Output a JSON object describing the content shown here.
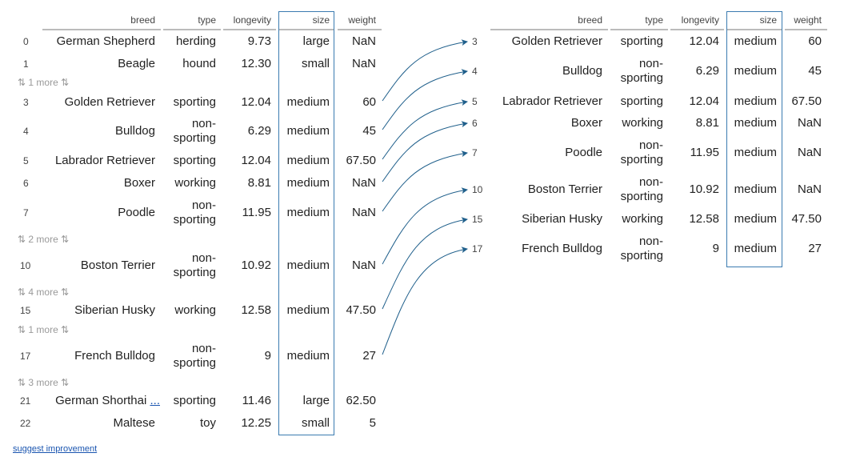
{
  "columns": [
    "breed",
    "type",
    "longevity",
    "size",
    "weight"
  ],
  "left_table": {
    "rows": [
      {
        "kind": "row",
        "index": "0",
        "breed": "German Shepherd",
        "type": "herding",
        "longevity": "9.73",
        "size": "large",
        "weight": "NaN"
      },
      {
        "kind": "row",
        "index": "1",
        "breed": "Beagle",
        "type": "hound",
        "longevity": "12.30",
        "size": "small",
        "weight": "NaN"
      },
      {
        "kind": "more",
        "label": "⇅ 1 more ⇅"
      },
      {
        "kind": "row",
        "index": "3",
        "breed": "Golden Retriever",
        "type": "sporting",
        "longevity": "12.04",
        "size": "medium",
        "weight": "60"
      },
      {
        "kind": "row",
        "index": "4",
        "breed": "Bulldog",
        "type": "non-sporting",
        "longevity": "6.29",
        "size": "medium",
        "weight": "45"
      },
      {
        "kind": "row",
        "index": "5",
        "breed": "Labrador Retriever",
        "type": "sporting",
        "longevity": "12.04",
        "size": "medium",
        "weight": "67.50"
      },
      {
        "kind": "row",
        "index": "6",
        "breed": "Boxer",
        "type": "working",
        "longevity": "8.81",
        "size": "medium",
        "weight": "NaN"
      },
      {
        "kind": "row",
        "index": "7",
        "breed": "Poodle",
        "type": "non-sporting",
        "longevity": "11.95",
        "size": "medium",
        "weight": "NaN"
      },
      {
        "kind": "more",
        "label": "⇅ 2 more ⇅"
      },
      {
        "kind": "row",
        "index": "10",
        "breed": "Boston Terrier",
        "type": "non-sporting",
        "longevity": "10.92",
        "size": "medium",
        "weight": "NaN"
      },
      {
        "kind": "more",
        "label": "⇅ 4 more ⇅"
      },
      {
        "kind": "row",
        "index": "15",
        "breed": "Siberian Husky",
        "type": "working",
        "longevity": "12.58",
        "size": "medium",
        "weight": "47.50"
      },
      {
        "kind": "more",
        "label": "⇅ 1 more ⇅"
      },
      {
        "kind": "row",
        "index": "17",
        "breed": "French Bulldog",
        "type": "non-sporting",
        "longevity": "9",
        "size": "medium",
        "weight": "27"
      },
      {
        "kind": "more",
        "label": "⇅ 3 more ⇅"
      },
      {
        "kind": "row",
        "index": "21",
        "breed": "German Shorthai",
        "breed_ellipsis": "...",
        "type": "sporting",
        "longevity": "11.46",
        "size": "large",
        "weight": "62.50"
      },
      {
        "kind": "row",
        "index": "22",
        "breed": "Maltese",
        "type": "toy",
        "longevity": "12.25",
        "size": "small",
        "weight": "5"
      }
    ]
  },
  "right_table": {
    "rows": [
      {
        "index": "3",
        "breed": "Golden Retriever",
        "type": "sporting",
        "longevity": "12.04",
        "size": "medium",
        "weight": "60"
      },
      {
        "index": "4",
        "breed": "Bulldog",
        "type": "non-sporting",
        "longevity": "6.29",
        "size": "medium",
        "weight": "45"
      },
      {
        "index": "5",
        "breed": "Labrador Retriever",
        "type": "sporting",
        "longevity": "12.04",
        "size": "medium",
        "weight": "67.50"
      },
      {
        "index": "6",
        "breed": "Boxer",
        "type": "working",
        "longevity": "8.81",
        "size": "medium",
        "weight": "NaN"
      },
      {
        "index": "7",
        "breed": "Poodle",
        "type": "non-sporting",
        "longevity": "11.95",
        "size": "medium",
        "weight": "NaN"
      },
      {
        "index": "10",
        "breed": "Boston Terrier",
        "type": "non-sporting",
        "longevity": "10.92",
        "size": "medium",
        "weight": "NaN"
      },
      {
        "index": "15",
        "breed": "Siberian Husky",
        "type": "working",
        "longevity": "12.58",
        "size": "medium",
        "weight": "47.50"
      },
      {
        "index": "17",
        "breed": "French Bulldog",
        "type": "non-sporting",
        "longevity": "9",
        "size": "medium",
        "weight": "27"
      }
    ]
  },
  "highlight_column": "size",
  "colors": {
    "highlight": "#3b7bb0",
    "arrow": "#1f5f8b"
  },
  "footer": {
    "suggest_link": "suggest improvement"
  }
}
